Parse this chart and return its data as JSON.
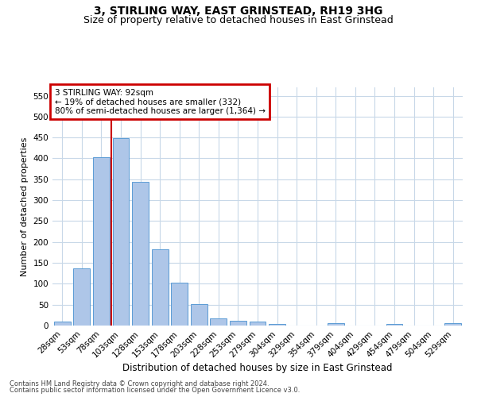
{
  "title": "3, STIRLING WAY, EAST GRINSTEAD, RH19 3HG",
  "subtitle": "Size of property relative to detached houses in East Grinstead",
  "xlabel": "Distribution of detached houses by size in East Grinstead",
  "ylabel": "Number of detached properties",
  "footnote1": "Contains HM Land Registry data © Crown copyright and database right 2024.",
  "footnote2": "Contains public sector information licensed under the Open Government Licence v3.0.",
  "bar_labels": [
    "28sqm",
    "53sqm",
    "78sqm",
    "103sqm",
    "128sqm",
    "153sqm",
    "178sqm",
    "203sqm",
    "228sqm",
    "253sqm",
    "279sqm",
    "304sqm",
    "329sqm",
    "354sqm",
    "379sqm",
    "404sqm",
    "429sqm",
    "454sqm",
    "479sqm",
    "504sqm",
    "529sqm"
  ],
  "bar_values": [
    10,
    137,
    403,
    449,
    343,
    182,
    103,
    51,
    17,
    12,
    10,
    4,
    0,
    0,
    5,
    0,
    0,
    3,
    0,
    0,
    5
  ],
  "bar_color": "#aec6e8",
  "bar_edge_color": "#5b9bd5",
  "vline_color": "#cc0000",
  "annotation_text": "3 STIRLING WAY: 92sqm\n← 19% of detached houses are smaller (332)\n80% of semi-detached houses are larger (1,364) →",
  "annotation_box_color": "#cc0000",
  "ylim": [
    0,
    570
  ],
  "yticks": [
    0,
    50,
    100,
    150,
    200,
    250,
    300,
    350,
    400,
    450,
    500,
    550
  ],
  "bg_color": "#ffffff",
  "grid_color": "#c8d8e8",
  "title_fontsize": 10,
  "subtitle_fontsize": 9,
  "ylabel_fontsize": 8,
  "xlabel_fontsize": 8.5,
  "tick_fontsize": 7.5,
  "annot_fontsize": 7.5,
  "footnote_fontsize": 6
}
